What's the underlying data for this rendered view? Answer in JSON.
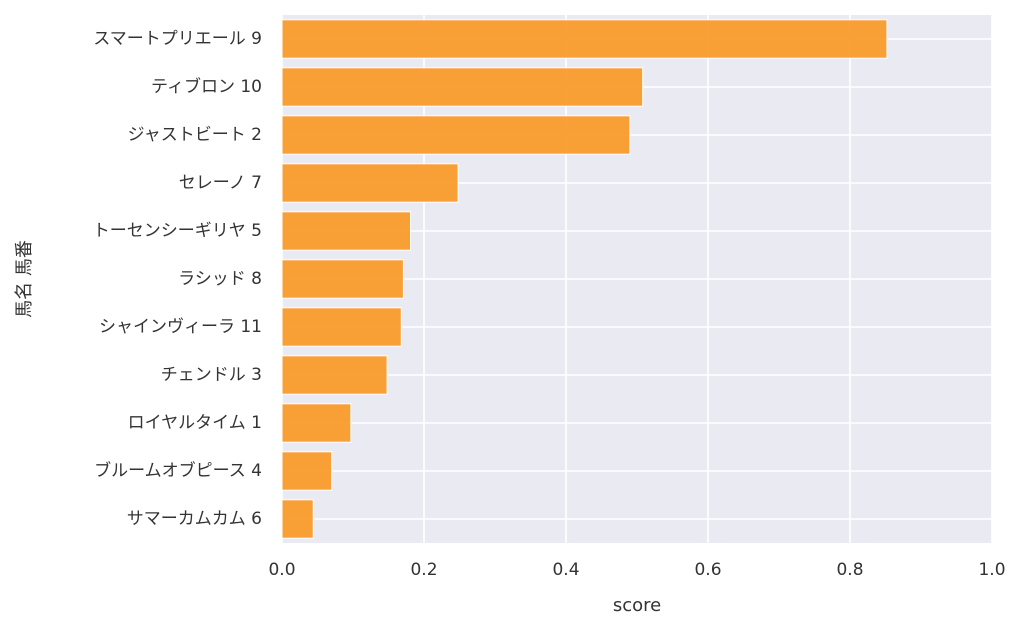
{
  "chart_data": {
    "type": "bar",
    "orientation": "horizontal",
    "xlabel": "score",
    "ylabel": "馬名 馬番",
    "xlim": [
      0.0,
      1.0
    ],
    "xticks": [
      "0.0",
      "0.2",
      "0.4",
      "0.6",
      "0.8",
      "1.0"
    ],
    "grid": true,
    "categories": [
      "スマートプリエール 9",
      "ティブロン 10",
      "ジャストビート 2",
      "セレーノ 7",
      "トーセンシーギリヤ 5",
      "ラシッド 8",
      "シャインヴィーラ 11",
      "チェンドル 3",
      "ロイヤルタイム 1",
      "ブルームオブピース 4",
      "サマーカムカム 6"
    ],
    "values": [
      0.852,
      0.508,
      0.49,
      0.248,
      0.181,
      0.171,
      0.168,
      0.148,
      0.097,
      0.07,
      0.044
    ],
    "colors": {
      "bar": "#f99b2b",
      "bar_edge": "#ffffff",
      "plot_bg": "#eaeaf2",
      "grid": "#ffffff",
      "text": "#333333"
    }
  }
}
